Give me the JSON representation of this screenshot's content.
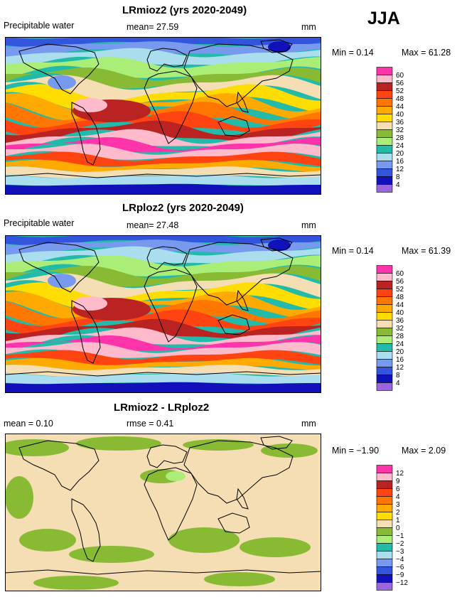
{
  "season": "JJA",
  "palette": [
    "#9966dd",
    "#1111bb",
    "#3355dd",
    "#7799ee",
    "#aaddee",
    "#22bbaa",
    "#aaee77",
    "#88bb33",
    "#f5deb3",
    "#ffdd00",
    "#ffaa00",
    "#ff7700",
    "#ff4411",
    "#bb2222",
    "#ffbbcc",
    "#ff33aa"
  ],
  "coast_color": "#000000",
  "panels": [
    {
      "title": "LRmioz2 (yrs 2020-2049)",
      "left_label": "Precipitable water",
      "stat_text": "mean=   27.59",
      "units": "mm",
      "min_text": "Min =    0.14",
      "max_text": "Max =   61.28",
      "pattern": "absolute",
      "legend": {
        "labels": [
          "60",
          "56",
          "52",
          "48",
          "44",
          "40",
          "36",
          "32",
          "28",
          "24",
          "20",
          "16",
          "12",
          "8",
          "4"
        ]
      }
    },
    {
      "title": "LRploz2 (yrs 2020-2049)",
      "left_label": "Precipitable water",
      "stat_text": "mean=   27.48",
      "units": "mm",
      "min_text": "Min =    0.14",
      "max_text": "Max =   61.39",
      "pattern": "absolute",
      "legend": {
        "labels": [
          "60",
          "56",
          "52",
          "48",
          "44",
          "40",
          "36",
          "32",
          "28",
          "24",
          "20",
          "16",
          "12",
          "8",
          "4"
        ]
      }
    },
    {
      "title": "LRmioz2 - LRploz2",
      "left_label": "mean =    0.10",
      "stat_text": "rmse =    0.41",
      "units": "mm",
      "min_text": "Min =  −1.90",
      "max_text": "Max =    2.09",
      "pattern": "difference",
      "legend": {
        "labels": [
          "12",
          "9",
          "6",
          "4",
          "3",
          "2",
          "1",
          "0",
          "−1",
          "−2",
          "−3",
          "−4",
          "−6",
          "−9",
          "−12"
        ]
      }
    }
  ]
}
